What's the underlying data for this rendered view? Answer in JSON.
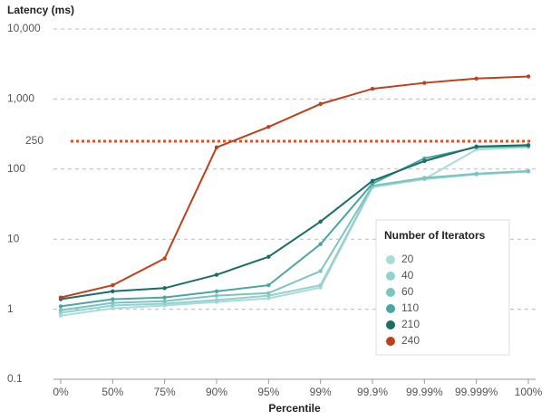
{
  "chart_data": {
    "type": "line",
    "title": "Latency (ms)",
    "x_label": "Percentile",
    "categories": [
      "0%",
      "50%",
      "75%",
      "90%",
      "95%",
      "99%",
      "99.9%",
      "99.99%",
      "99.999%",
      "100%"
    ],
    "series": [
      {
        "name": "20",
        "color": "#a8dcd9",
        "values": [
          0.81,
          1.03,
          1.13,
          1.27,
          1.43,
          2.04,
          55,
          72,
          190,
          205
        ]
      },
      {
        "name": "40",
        "color": "#94d0ce",
        "values": [
          0.89,
          1.13,
          1.2,
          1.35,
          1.56,
          2.2,
          57,
          72,
          84,
          92
        ]
      },
      {
        "name": "60",
        "color": "#7cc4c2",
        "values": [
          0.97,
          1.23,
          1.3,
          1.56,
          1.7,
          3.5,
          58,
          75,
          86,
          94
        ]
      },
      {
        "name": "110",
        "color": "#4aa6a4",
        "values": [
          1.1,
          1.39,
          1.47,
          1.8,
          2.2,
          8.5,
          62,
          142,
          205,
          215
        ]
      },
      {
        "name": "210",
        "color": "#1a6e6a",
        "values": [
          1.39,
          1.8,
          2.0,
          3.1,
          5.6,
          17.8,
          68,
          130,
          210,
          220
        ]
      },
      {
        "name": "240",
        "color": "#c1401c",
        "values": [
          1.47,
          2.2,
          5.3,
          204,
          400,
          850,
          1400,
          1700,
          1960,
          2100
        ]
      }
    ],
    "legend_title": "Number of Iterators",
    "legend": "lower right",
    "reference_line": {
      "value": 250,
      "color": "#e0502a"
    },
    "log_y": true,
    "grid": true,
    "ylim": [
      0.1,
      10000
    ],
    "yticks": [
      0.1,
      1,
      10,
      100,
      {
        "value": 1000,
        "label": "1,000"
      },
      {
        "value": 10000,
        "label": "10,000"
      }
    ]
  }
}
